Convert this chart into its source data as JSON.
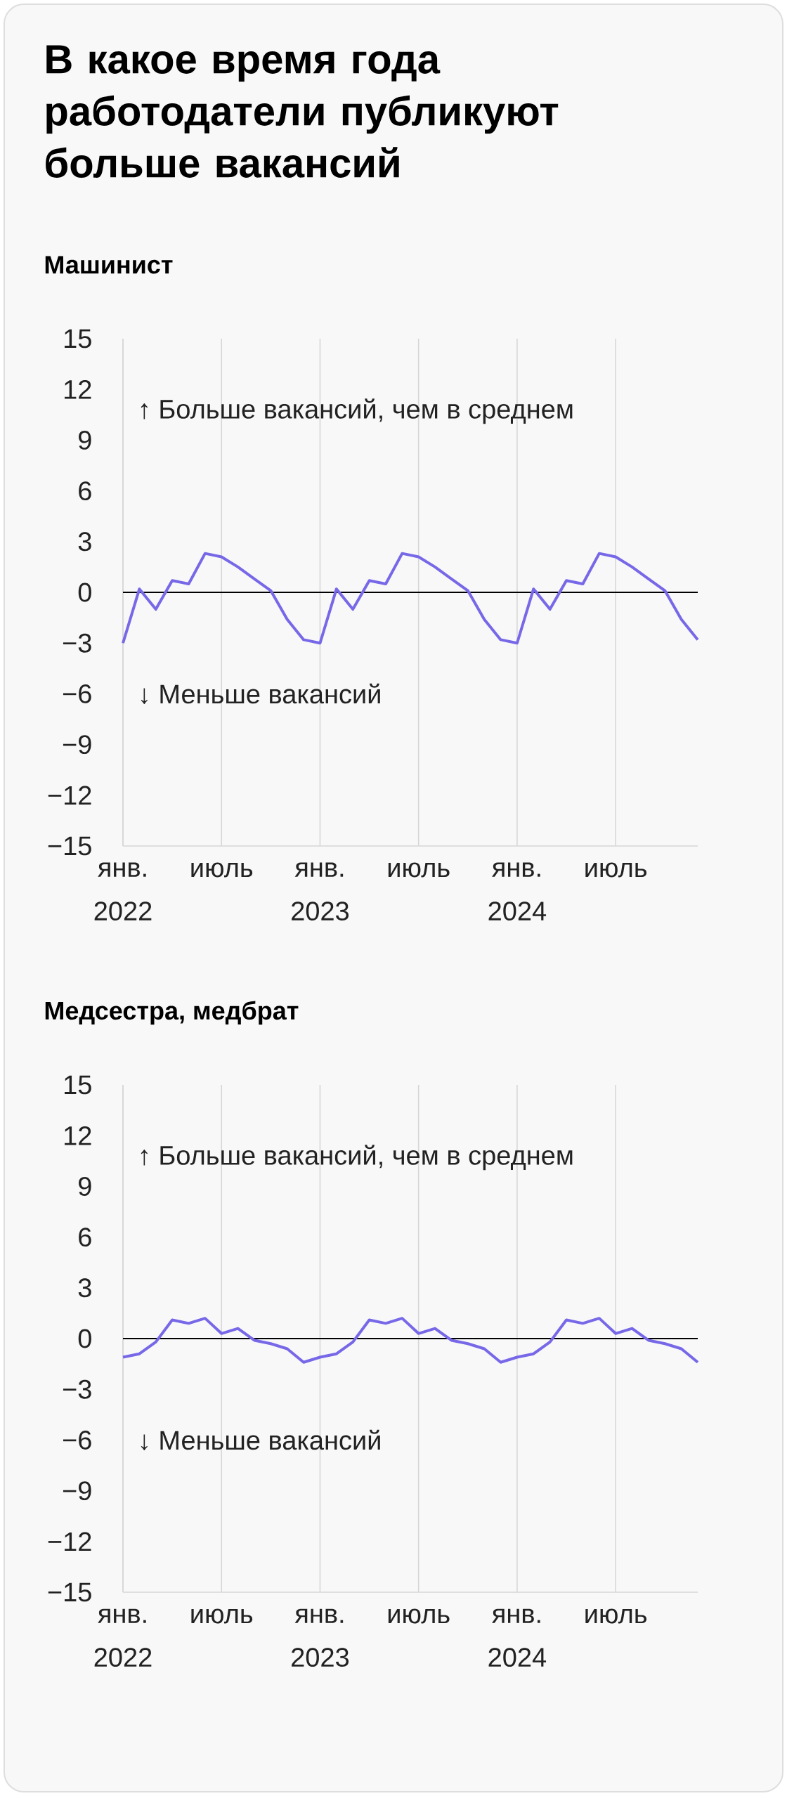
{
  "chart_data": [
    {
      "type": "line",
      "title": "В какое время года работодатели публикуют больше вакансий",
      "subtitle": "Машинист",
      "annotations": [
        "↑ Больше вакансий, чем в среднем",
        "↓ Меньше вакансий"
      ],
      "x": [
        "2022-01",
        "2022-02",
        "2022-03",
        "2022-04",
        "2022-05",
        "2022-06",
        "2022-07",
        "2022-08",
        "2022-09",
        "2022-10",
        "2022-11",
        "2022-12",
        "2023-01",
        "2023-02",
        "2023-03",
        "2023-04",
        "2023-05",
        "2023-06",
        "2023-07",
        "2023-08",
        "2023-09",
        "2023-10",
        "2023-11",
        "2023-12",
        "2024-01",
        "2024-02",
        "2024-03",
        "2024-04",
        "2024-05",
        "2024-06",
        "2024-07",
        "2024-08",
        "2024-09",
        "2024-10",
        "2024-11",
        "2024-12"
      ],
      "series": [
        {
          "color": "#7768e8",
          "values": [
            -3.0,
            0.2,
            -1.0,
            0.7,
            0.5,
            2.3,
            2.1,
            1.5,
            0.8,
            0.1,
            -1.6,
            -2.8,
            -3.0,
            0.2,
            -1.0,
            0.7,
            0.5,
            2.3,
            2.1,
            1.5,
            0.8,
            0.1,
            -1.6,
            -2.8,
            -3.0,
            0.2,
            -1.0,
            0.7,
            0.5,
            2.3,
            2.1,
            1.5,
            0.8,
            0.1,
            -1.6,
            -2.8
          ]
        }
      ],
      "xlim": [
        "2022-01",
        "2024-12"
      ],
      "xticks": [
        {
          "value": "2022-01",
          "label": "янв. 2022"
        },
        {
          "value": "2022-07",
          "label": "июль"
        },
        {
          "value": "2023-01",
          "label": "янв. 2023"
        },
        {
          "value": "2023-07",
          "label": "июль"
        },
        {
          "value": "2024-01",
          "label": "янв. 2024"
        },
        {
          "value": "2024-07",
          "label": "июль"
        }
      ],
      "ylim": [
        -15,
        15
      ],
      "yticks": [
        {
          "value": -15,
          "label": "−15"
        },
        {
          "value": -12,
          "label": "−12"
        },
        {
          "value": -9,
          "label": "−9"
        },
        {
          "value": -6,
          "label": "−6"
        },
        {
          "value": -3,
          "label": "−3"
        },
        0,
        3,
        6,
        9,
        12,
        15
      ],
      "ref_lines": [
        {
          "axis": "y",
          "value": 0,
          "color": "#000000"
        }
      ],
      "grid": "x",
      "marker": "none",
      "line_style": "solid"
    },
    {
      "type": "line",
      "title": "Медсестра, медбрат",
      "annotations": [
        "↑ Больше вакансий, чем в среднем",
        "↓ Меньше вакансий"
      ],
      "x": [
        "2022-01",
        "2022-02",
        "2022-03",
        "2022-04",
        "2022-05",
        "2022-06",
        "2022-07",
        "2022-08",
        "2022-09",
        "2022-10",
        "2022-11",
        "2022-12",
        "2023-01",
        "2023-02",
        "2023-03",
        "2023-04",
        "2023-05",
        "2023-06",
        "2023-07",
        "2023-08",
        "2023-09",
        "2023-10",
        "2023-11",
        "2023-12",
        "2024-01",
        "2024-02",
        "2024-03",
        "2024-04",
        "2024-05",
        "2024-06",
        "2024-07",
        "2024-08",
        "2024-09",
        "2024-10",
        "2024-11",
        "2024-12"
      ],
      "series": [
        {
          "color": "#7768e8",
          "values": [
            -1.1,
            -0.9,
            -0.2,
            1.1,
            0.9,
            1.2,
            0.3,
            0.6,
            -0.1,
            -0.3,
            -0.6,
            -1.4,
            -1.1,
            -0.9,
            -0.2,
            1.1,
            0.9,
            1.2,
            0.3,
            0.6,
            -0.1,
            -0.3,
            -0.6,
            -1.4,
            -1.1,
            -0.9,
            -0.2,
            1.1,
            0.9,
            1.2,
            0.3,
            0.6,
            -0.1,
            -0.3,
            -0.6,
            -1.4
          ]
        }
      ],
      "xlim": [
        "2022-01",
        "2024-12"
      ],
      "xticks": [
        {
          "value": "2022-01",
          "label": "янв. 2022"
        },
        {
          "value": "2022-07",
          "label": "июль"
        },
        {
          "value": "2023-01",
          "label": "янв. 2023"
        },
        {
          "value": "2023-07",
          "label": "июль"
        },
        {
          "value": "2024-01",
          "label": "янв. 2024"
        },
        {
          "value": "2024-07",
          "label": "июль"
        }
      ],
      "ylim": [
        -15,
        15
      ],
      "yticks": [
        {
          "value": -15,
          "label": "−15"
        },
        {
          "value": -12,
          "label": "−12"
        },
        {
          "value": -9,
          "label": "−9"
        },
        {
          "value": -6,
          "label": "−6"
        },
        {
          "value": -3,
          "label": "−3"
        },
        0,
        3,
        6,
        9,
        12,
        15
      ],
      "ref_lines": [
        {
          "axis": "y",
          "value": 0,
          "color": "#000000"
        }
      ],
      "grid": "x",
      "marker": "none",
      "line_style": "solid"
    }
  ]
}
